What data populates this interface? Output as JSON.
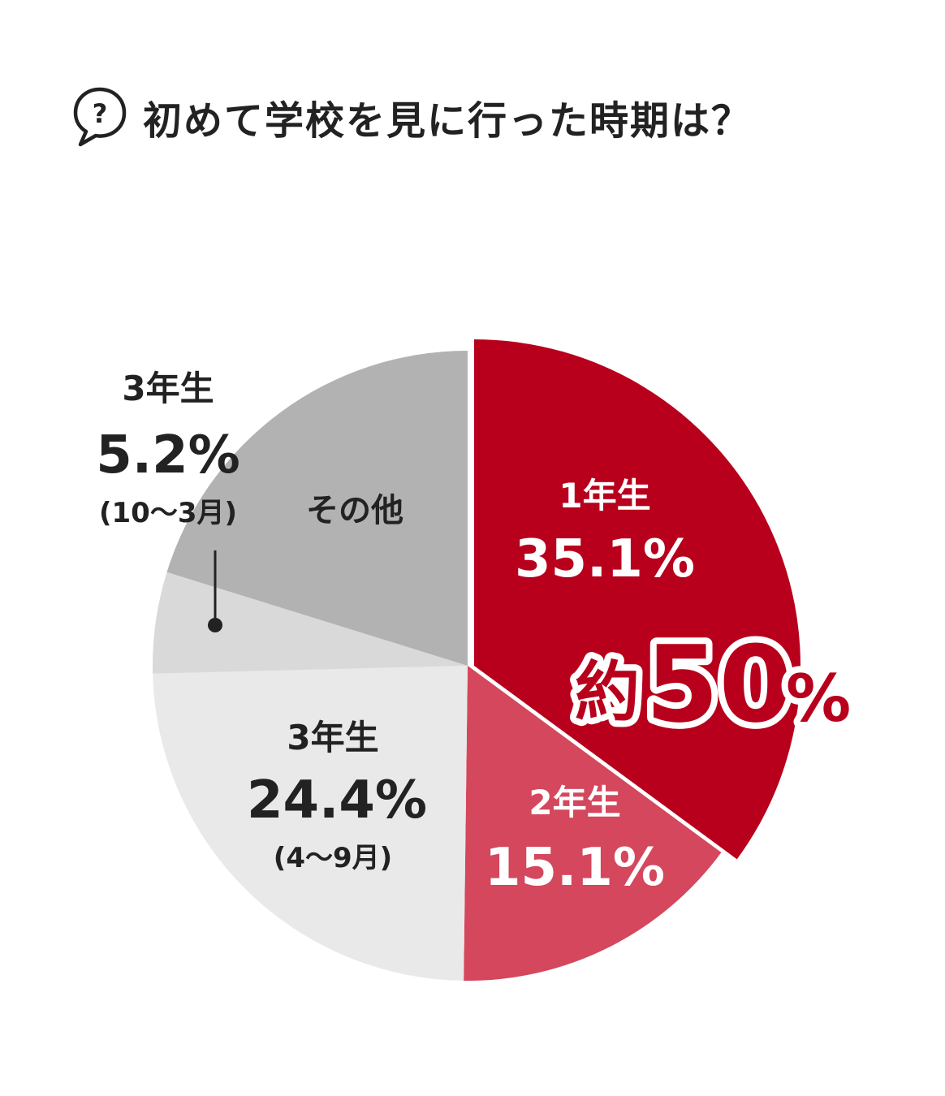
{
  "title": "初めて学校を見に行った時期は？",
  "icon": "question-speech-bubble-icon",
  "chart_data": {
    "type": "pie",
    "slices": [
      {
        "grade": "1年生",
        "value": 35.1,
        "value_label": "35.1%",
        "period": "",
        "color": "#b8001c",
        "text_color": "#ffffff"
      },
      {
        "grade": "2年生",
        "value": 15.1,
        "value_label": "15.1%",
        "period": "",
        "color": "#d4475c",
        "text_color": "#ffffff"
      },
      {
        "grade": "3年生",
        "value": 24.4,
        "value_label": "24.4%",
        "period": "(4〜9月)",
        "color": "#e9e9e9",
        "text_color": "#222222"
      },
      {
        "grade": "3年生",
        "value": 5.2,
        "value_label": "5.2%",
        "period": "(10〜3月)",
        "color": "#d9d9d9",
        "text_color": "#222222"
      },
      {
        "grade": "その他",
        "value": 20.2,
        "value_label": "",
        "period": "",
        "color": "#b2b2b2",
        "text_color": "#222222"
      }
    ],
    "callout": {
      "prefix": "約",
      "value": "50",
      "unit": "%"
    },
    "callout_color": "#b8001c",
    "start_angle": "12 o'clock, clockwise"
  }
}
